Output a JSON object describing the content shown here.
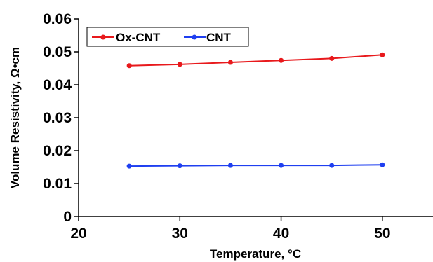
{
  "chart_data": {
    "type": "line",
    "title": "",
    "xlabel": "Temperature, °C",
    "ylabel": "Volume Resistivity, Ω•cm",
    "xlim": [
      20,
      55
    ],
    "ylim": [
      0,
      0.06
    ],
    "xticks": [
      "20",
      "30",
      "40",
      "50"
    ],
    "yticks": [
      "0",
      "0.01",
      "0.02",
      "0.03",
      "0.04",
      "0.05",
      "0.06"
    ],
    "grid": false,
    "legend_position": "top-left",
    "series": [
      {
        "name": "Ox-CNT",
        "color": "#e8191c",
        "x": [
          25,
          30,
          35,
          40,
          45,
          50
        ],
        "y": [
          0.0458,
          0.0462,
          0.0468,
          0.0474,
          0.048,
          0.0491
        ]
      },
      {
        "name": "CNT",
        "color": "#1f3ff0",
        "x": [
          25,
          30,
          35,
          40,
          45,
          50
        ],
        "y": [
          0.0153,
          0.0154,
          0.0155,
          0.0155,
          0.0155,
          0.0157
        ]
      }
    ]
  }
}
